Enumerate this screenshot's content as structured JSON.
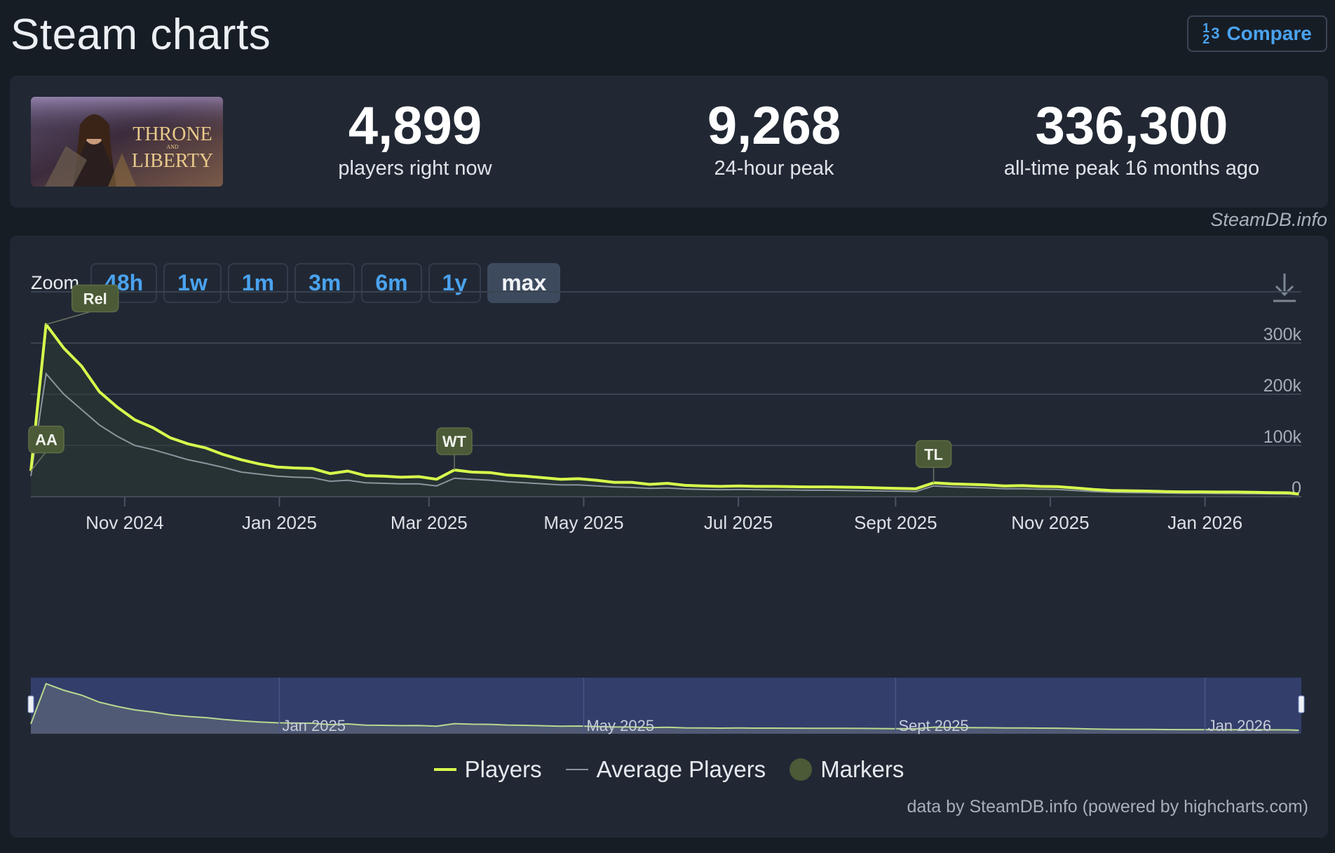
{
  "page": {
    "title": "Steam charts"
  },
  "compare": {
    "icon": "fraction-numbers-icon",
    "label": "Compare",
    "icon_text_a": "1",
    "icon_text_b": "3",
    "icon_text_c": "2"
  },
  "game": {
    "name": "Throne and Liberty",
    "thumb_line1": "THRONE",
    "thumb_and": "AND",
    "thumb_line2": "LIBERTY"
  },
  "stats": [
    {
      "value": "4,899",
      "label": "players right now"
    },
    {
      "value": "9,268",
      "label": "24-hour peak"
    },
    {
      "value": "336,300",
      "label": "all-time peak 16 months ago"
    }
  ],
  "credit_top": "SteamDB.info",
  "zoom": {
    "label": "Zoom",
    "buttons": [
      "48h",
      "1w",
      "1m",
      "3m",
      "6m",
      "1y",
      "max"
    ],
    "active": "max"
  },
  "colors": {
    "players": "#d8ff4c",
    "average": "#8c939d",
    "markers": "#4b5a37",
    "navigator_bg": "#343e6b"
  },
  "chart_data": {
    "type": "line",
    "x_axis_labels": [
      "Nov 2024",
      "Jan 2025",
      "Mar 2025",
      "May 2025",
      "Jul 2025",
      "Sept 2025",
      "Nov 2025",
      "Jan 2026"
    ],
    "y_axis_labels": [
      "300k",
      "200k",
      "100k",
      "0"
    ],
    "ylim": [
      0,
      400000
    ],
    "xlim": [
      "2024-09-25",
      "2026-02-08"
    ],
    "grid": true,
    "legend_position": "bottom",
    "series": [
      {
        "name": "Players",
        "points": [
          [
            "2024-09-25",
            50000
          ],
          [
            "2024-10-01",
            336300
          ],
          [
            "2024-10-08",
            290000
          ],
          [
            "2024-10-15",
            255000
          ],
          [
            "2024-10-22",
            205000
          ],
          [
            "2024-10-29",
            175000
          ],
          [
            "2024-11-05",
            150000
          ],
          [
            "2024-11-12",
            135000
          ],
          [
            "2024-11-19",
            115000
          ],
          [
            "2024-11-26",
            103000
          ],
          [
            "2024-12-03",
            95000
          ],
          [
            "2024-12-10",
            82000
          ],
          [
            "2024-12-17",
            72000
          ],
          [
            "2024-12-24",
            64000
          ],
          [
            "2024-12-31",
            58000
          ],
          [
            "2025-01-07",
            56000
          ],
          [
            "2025-01-14",
            55000
          ],
          [
            "2025-01-21",
            45000
          ],
          [
            "2025-01-28",
            50000
          ],
          [
            "2025-02-04",
            41000
          ],
          [
            "2025-02-11",
            40000
          ],
          [
            "2025-02-18",
            38000
          ],
          [
            "2025-02-25",
            39000
          ],
          [
            "2025-03-04",
            34000
          ],
          [
            "2025-03-11",
            52000
          ],
          [
            "2025-03-18",
            48000
          ],
          [
            "2025-03-25",
            47000
          ],
          [
            "2025-04-01",
            42000
          ],
          [
            "2025-04-08",
            40000
          ],
          [
            "2025-04-15",
            37000
          ],
          [
            "2025-04-22",
            34000
          ],
          [
            "2025-04-29",
            35000
          ],
          [
            "2025-05-06",
            32000
          ],
          [
            "2025-05-13",
            28000
          ],
          [
            "2025-05-20",
            28000
          ],
          [
            "2025-05-27",
            24000
          ],
          [
            "2025-06-03",
            26000
          ],
          [
            "2025-06-10",
            22000
          ],
          [
            "2025-06-17",
            21000
          ],
          [
            "2025-06-24",
            20000
          ],
          [
            "2025-07-01",
            21000
          ],
          [
            "2025-07-08",
            20000
          ],
          [
            "2025-07-15",
            20000
          ],
          [
            "2025-07-22",
            19500
          ],
          [
            "2025-07-29",
            19000
          ],
          [
            "2025-08-05",
            19000
          ],
          [
            "2025-08-12",
            18500
          ],
          [
            "2025-08-19",
            18000
          ],
          [
            "2025-08-26",
            17000
          ],
          [
            "2025-09-02",
            16000
          ],
          [
            "2025-09-09",
            15500
          ],
          [
            "2025-09-16",
            27000
          ],
          [
            "2025-09-23",
            25000
          ],
          [
            "2025-09-30",
            24000
          ],
          [
            "2025-10-07",
            23000
          ],
          [
            "2025-10-14",
            21000
          ],
          [
            "2025-10-21",
            21500
          ],
          [
            "2025-10-28",
            20000
          ],
          [
            "2025-11-04",
            19500
          ],
          [
            "2025-11-11",
            17000
          ],
          [
            "2025-11-18",
            14000
          ],
          [
            "2025-11-25",
            12000
          ],
          [
            "2025-12-02",
            11500
          ],
          [
            "2025-12-09",
            11000
          ],
          [
            "2025-12-16",
            10000
          ],
          [
            "2025-12-23",
            9500
          ],
          [
            "2025-12-30",
            9500
          ],
          [
            "2026-01-06",
            9000
          ],
          [
            "2026-01-13",
            9000
          ],
          [
            "2026-01-20",
            8500
          ],
          [
            "2026-01-27",
            8000
          ],
          [
            "2026-02-03",
            7500
          ],
          [
            "2026-02-07",
            4899
          ]
        ]
      },
      {
        "name": "Average Players",
        "points": [
          [
            "2024-09-25",
            40000
          ],
          [
            "2024-10-01",
            240000
          ],
          [
            "2024-10-08",
            200000
          ],
          [
            "2024-10-15",
            170000
          ],
          [
            "2024-10-22",
            140000
          ],
          [
            "2024-10-29",
            118000
          ],
          [
            "2024-11-05",
            100000
          ],
          [
            "2024-11-12",
            92000
          ],
          [
            "2024-11-19",
            82000
          ],
          [
            "2024-11-26",
            72000
          ],
          [
            "2024-12-03",
            65000
          ],
          [
            "2024-12-10",
            57000
          ],
          [
            "2024-12-17",
            48000
          ],
          [
            "2024-12-24",
            44000
          ],
          [
            "2024-12-31",
            40000
          ],
          [
            "2025-01-07",
            38000
          ],
          [
            "2025-01-14",
            37000
          ],
          [
            "2025-01-21",
            30000
          ],
          [
            "2025-01-28",
            32000
          ],
          [
            "2025-02-04",
            27000
          ],
          [
            "2025-02-11",
            26000
          ],
          [
            "2025-02-18",
            25000
          ],
          [
            "2025-02-25",
            25000
          ],
          [
            "2025-03-04",
            21000
          ],
          [
            "2025-03-11",
            36000
          ],
          [
            "2025-03-18",
            34000
          ],
          [
            "2025-03-25",
            32000
          ],
          [
            "2025-04-01",
            29000
          ],
          [
            "2025-04-08",
            27000
          ],
          [
            "2025-04-15",
            25000
          ],
          [
            "2025-04-22",
            23000
          ],
          [
            "2025-04-29",
            23000
          ],
          [
            "2025-05-06",
            21000
          ],
          [
            "2025-05-13",
            19000
          ],
          [
            "2025-05-20",
            18000
          ],
          [
            "2025-05-27",
            16000
          ],
          [
            "2025-06-03",
            17000
          ],
          [
            "2025-06-10",
            15000
          ],
          [
            "2025-06-17",
            14000
          ],
          [
            "2025-06-24",
            13500
          ],
          [
            "2025-07-01",
            14000
          ],
          [
            "2025-07-08",
            13500
          ],
          [
            "2025-07-15",
            13000
          ],
          [
            "2025-07-22",
            13000
          ],
          [
            "2025-07-29",
            12500
          ],
          [
            "2025-08-05",
            12500
          ],
          [
            "2025-08-12",
            12000
          ],
          [
            "2025-08-19",
            11500
          ],
          [
            "2025-08-26",
            11000
          ],
          [
            "2025-09-02",
            10500
          ],
          [
            "2025-09-09",
            10000
          ],
          [
            "2025-09-16",
            21000
          ],
          [
            "2025-09-23",
            19000
          ],
          [
            "2025-09-30",
            18000
          ],
          [
            "2025-10-07",
            17000
          ],
          [
            "2025-10-14",
            15500
          ],
          [
            "2025-10-21",
            15500
          ],
          [
            "2025-10-28",
            14500
          ],
          [
            "2025-11-04",
            14000
          ],
          [
            "2025-11-11",
            12000
          ],
          [
            "2025-11-18",
            10000
          ],
          [
            "2025-11-25",
            8500
          ],
          [
            "2025-12-02",
            8000
          ],
          [
            "2025-12-09",
            7500
          ],
          [
            "2025-12-16",
            7000
          ],
          [
            "2025-12-23",
            6500
          ],
          [
            "2025-12-30",
            6500
          ],
          [
            "2026-01-06",
            6200
          ],
          [
            "2026-01-13",
            6000
          ],
          [
            "2026-01-20",
            5800
          ],
          [
            "2026-01-27",
            5500
          ],
          [
            "2026-02-03",
            5200
          ],
          [
            "2026-02-07",
            3500
          ]
        ]
      }
    ],
    "markers": [
      {
        "label": "AA",
        "date": "2024-09-25",
        "value": 50000
      },
      {
        "label": "Rel",
        "date": "2024-10-01",
        "value": 336300
      },
      {
        "label": "WT",
        "date": "2025-03-11",
        "value": 52000
      },
      {
        "label": "TL",
        "date": "2025-09-16",
        "value": 27000
      }
    ],
    "navigator_labels": [
      "Jan 2025",
      "May 2025",
      "Sept 2025",
      "Jan 2026"
    ]
  },
  "legend": [
    "Players",
    "Average Players",
    "Markers"
  ],
  "credit_bottom": "data by SteamDB.info (powered by highcharts.com)"
}
